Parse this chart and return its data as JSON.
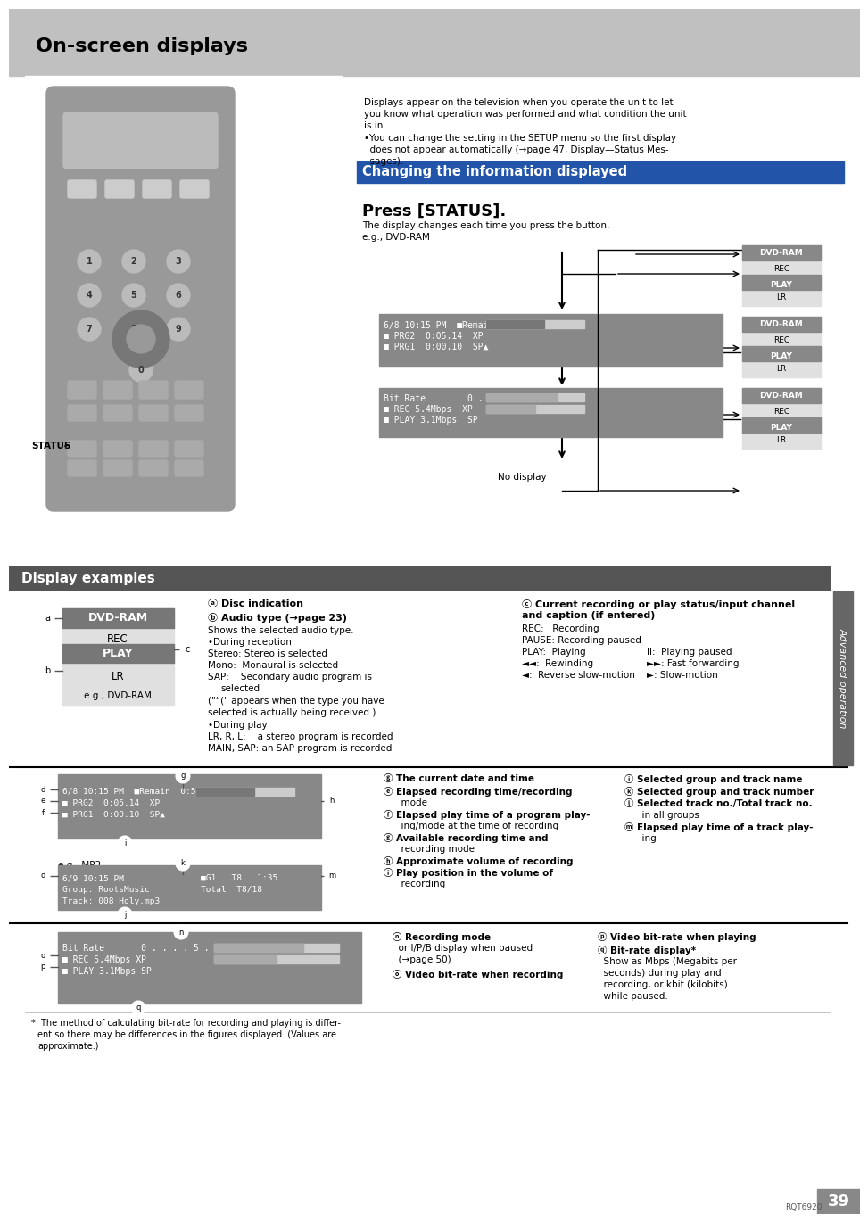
{
  "page_bg": "#ffffff",
  "header_bg": "#c0c0c0",
  "header_text": "On-screen displays",
  "section1_title": "Changing the information displayed",
  "section1_title_bg": "#2255aa",
  "press_status_title": "Press [STATUS].",
  "display_examples_title": "Display examples",
  "display_examples_bg": "#555555",
  "advanced_operation_text": "Advanced operation",
  "page_number": "39",
  "footer_code": "RQT6920"
}
